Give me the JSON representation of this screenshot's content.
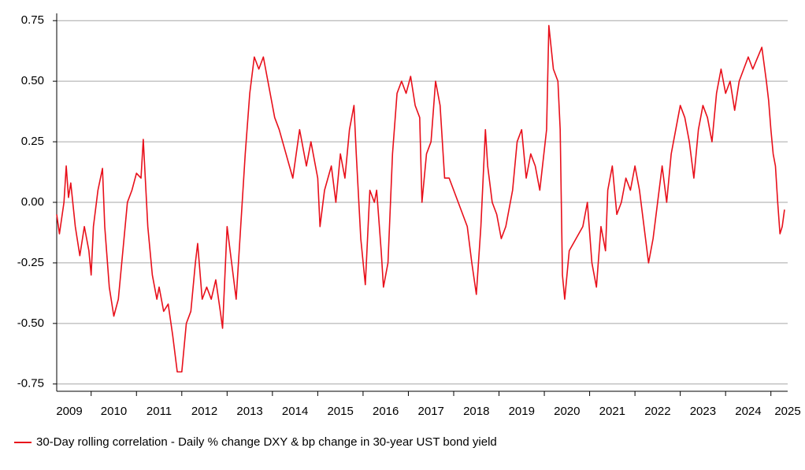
{
  "chart_data": {
    "type": "line",
    "x": [
      2009.24,
      2009.3,
      2009.4,
      2009.45,
      2009.5,
      2009.55,
      2009.65,
      2009.75,
      2009.85,
      2009.95,
      2010.0,
      2010.05,
      2010.15,
      2010.25,
      2010.3,
      2010.4,
      2010.5,
      2010.6,
      2010.7,
      2010.8,
      2010.9,
      2011.0,
      2011.1,
      2011.15,
      2011.25,
      2011.35,
      2011.45,
      2011.5,
      2011.6,
      2011.7,
      2011.8,
      2011.9,
      2012.0,
      2012.1,
      2012.2,
      2012.3,
      2012.35,
      2012.45,
      2012.55,
      2012.65,
      2012.75,
      2012.85,
      2012.9,
      2013.0,
      2013.1,
      2013.2,
      2013.3,
      2013.4,
      2013.5,
      2013.6,
      2013.7,
      2013.8,
      2013.9,
      2014.05,
      2014.15,
      2014.3,
      2014.45,
      2014.6,
      2014.75,
      2014.85,
      2015.0,
      2015.05,
      2015.15,
      2015.3,
      2015.4,
      2015.5,
      2015.6,
      2015.7,
      2015.8,
      2015.85,
      2015.95,
      2016.05,
      2016.15,
      2016.25,
      2016.3,
      2016.4,
      2016.45,
      2016.55,
      2016.65,
      2016.75,
      2016.85,
      2016.95,
      2017.05,
      2017.15,
      2017.25,
      2017.3,
      2017.4,
      2017.5,
      2017.6,
      2017.7,
      2017.8,
      2017.9,
      2018.0,
      2018.1,
      2018.2,
      2018.3,
      2018.4,
      2018.5,
      2018.6,
      2018.7,
      2018.75,
      2018.85,
      2018.95,
      2019.05,
      2019.15,
      2019.3,
      2019.4,
      2019.5,
      2019.6,
      2019.7,
      2019.8,
      2019.9,
      2020.05,
      2020.1,
      2020.2,
      2020.3,
      2020.35,
      2020.4,
      2020.45,
      2020.55,
      2020.7,
      2020.85,
      2020.95,
      2021.05,
      2021.15,
      2021.25,
      2021.35,
      2021.4,
      2021.5,
      2021.6,
      2021.7,
      2021.8,
      2021.9,
      2022.0,
      2022.1,
      2022.2,
      2022.3,
      2022.4,
      2022.5,
      2022.6,
      2022.7,
      2022.8,
      2022.9,
      2023.0,
      2023.1,
      2023.2,
      2023.3,
      2023.4,
      2023.5,
      2023.6,
      2023.7,
      2023.8,
      2023.9,
      2024.0,
      2024.1,
      2024.2,
      2024.3,
      2024.4,
      2024.5,
      2024.6,
      2024.8,
      2024.9,
      2024.95,
      2025.0,
      2025.05,
      2025.1,
      2025.15,
      2025.2,
      2025.25,
      2025.3
    ],
    "series": [
      {
        "name": "30-Day rolling correlation - Daily % change DXY & bp change in 30-year UST bond yield",
        "color": "#e8101b",
        "values": [
          -0.05,
          -0.13,
          0.0,
          0.15,
          0.02,
          0.08,
          -0.1,
          -0.22,
          -0.1,
          -0.2,
          -0.3,
          -0.1,
          0.05,
          0.14,
          -0.1,
          -0.35,
          -0.47,
          -0.4,
          -0.2,
          0.0,
          0.05,
          0.12,
          0.1,
          0.26,
          -0.1,
          -0.3,
          -0.4,
          -0.35,
          -0.45,
          -0.42,
          -0.55,
          -0.7,
          -0.7,
          -0.5,
          -0.45,
          -0.25,
          -0.17,
          -0.4,
          -0.35,
          -0.4,
          -0.32,
          -0.45,
          -0.52,
          -0.1,
          -0.25,
          -0.4,
          -0.1,
          0.2,
          0.45,
          0.6,
          0.55,
          0.6,
          0.5,
          0.35,
          0.3,
          0.2,
          0.1,
          0.3,
          0.15,
          0.25,
          0.1,
          -0.1,
          0.05,
          0.15,
          0.0,
          0.2,
          0.1,
          0.3,
          0.4,
          0.2,
          -0.15,
          -0.34,
          0.05,
          0.0,
          0.05,
          -0.2,
          -0.35,
          -0.25,
          0.2,
          0.45,
          0.5,
          0.45,
          0.52,
          0.4,
          0.35,
          0.0,
          0.2,
          0.25,
          0.5,
          0.4,
          0.1,
          0.1,
          0.05,
          0.0,
          -0.05,
          -0.1,
          -0.25,
          -0.38,
          -0.1,
          0.3,
          0.15,
          0.0,
          -0.05,
          -0.15,
          -0.1,
          0.05,
          0.25,
          0.3,
          0.1,
          0.2,
          0.15,
          0.05,
          0.3,
          0.73,
          0.55,
          0.5,
          0.3,
          -0.3,
          -0.4,
          -0.2,
          -0.15,
          -0.1,
          0.0,
          -0.25,
          -0.35,
          -0.1,
          -0.2,
          0.05,
          0.15,
          -0.05,
          0.0,
          0.1,
          0.05,
          0.15,
          0.05,
          -0.1,
          -0.25,
          -0.15,
          0.0,
          0.15,
          0.0,
          0.2,
          0.3,
          0.4,
          0.35,
          0.25,
          0.1,
          0.3,
          0.4,
          0.35,
          0.25,
          0.45,
          0.55,
          0.45,
          0.5,
          0.38,
          0.5,
          0.55,
          0.6,
          0.55,
          0.64,
          0.5,
          0.42,
          0.3,
          0.2,
          0.15,
          0.0,
          -0.13,
          -0.1,
          -0.03
        ]
      }
    ],
    "xlim": [
      2009.24,
      2025.37
    ],
    "xticks": [
      2009,
      2010,
      2011,
      2012,
      2013,
      2014,
      2015,
      2016,
      2017,
      2018,
      2019,
      2020,
      2021,
      2022,
      2023,
      2024,
      2025
    ],
    "ylim": [
      -0.78,
      0.78
    ],
    "yticks": [
      0.75,
      {
        "value": 0.5,
        "label": "0.50"
      },
      0.25,
      {
        "value": 0,
        "label": "0.00"
      },
      -0.25,
      {
        "value": -0.5,
        "label": "-0.50"
      },
      -0.75
    ],
    "grid": true,
    "legend": "bottom"
  }
}
